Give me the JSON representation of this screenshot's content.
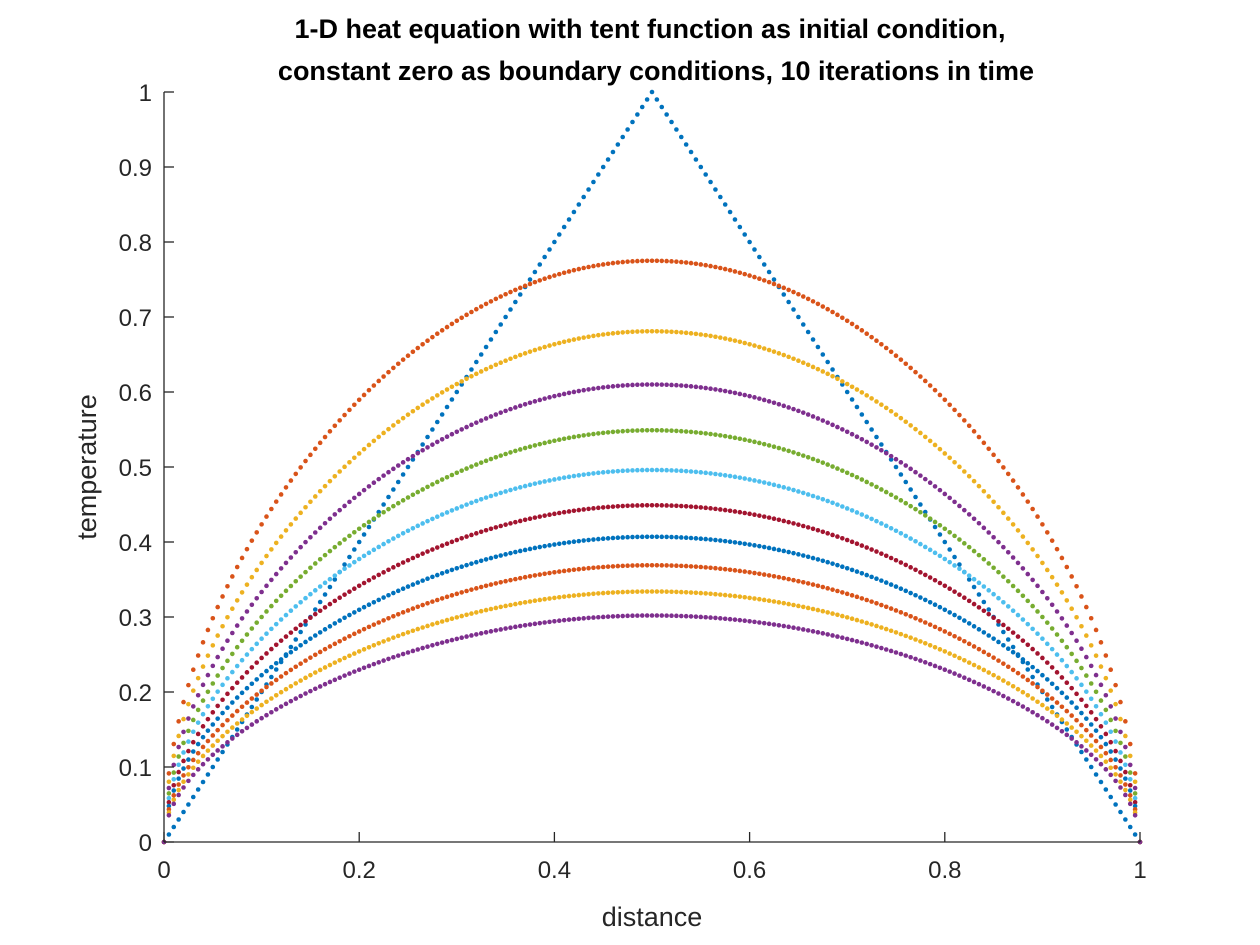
{
  "chart_data": {
    "type": "scatter",
    "title_line1": "1-D heat equation with tent function as initial condition,",
    "title_line2": "constant zero as boundary conditions, 10 iterations in time",
    "xlabel": "distance",
    "ylabel": "temperature",
    "xlim": [
      0,
      1
    ],
    "ylim": [
      0,
      1
    ],
    "x_ticks": [
      "0",
      "0.2",
      "0.4",
      "0.6",
      "0.8",
      "1"
    ],
    "y_ticks": [
      "0",
      "0.1",
      "0.2",
      "0.3",
      "0.4",
      "0.5",
      "0.6",
      "0.7",
      "0.8",
      "0.9",
      "1"
    ],
    "grid": false,
    "legend": "none",
    "points_per_series": 201,
    "x_range": [
      0,
      1
    ],
    "series": [
      {
        "iteration": 0,
        "shape": "tent",
        "peak": 1.0,
        "color": "#0072BD"
      },
      {
        "iteration": 1,
        "shape": "smoothed",
        "peak": 0.775,
        "color": "#D95319"
      },
      {
        "iteration": 2,
        "shape": "smoothed",
        "peak": 0.681,
        "color": "#EDB120"
      },
      {
        "iteration": 3,
        "shape": "smoothed",
        "peak": 0.61,
        "color": "#7E2F8E"
      },
      {
        "iteration": 4,
        "shape": "smoothed",
        "peak": 0.549,
        "color": "#77AC30"
      },
      {
        "iteration": 5,
        "shape": "smoothed",
        "peak": 0.496,
        "color": "#4DBEEE"
      },
      {
        "iteration": 6,
        "shape": "smoothed",
        "peak": 0.449,
        "color": "#A2142F"
      },
      {
        "iteration": 7,
        "shape": "smoothed",
        "peak": 0.407,
        "color": "#0072BD"
      },
      {
        "iteration": 8,
        "shape": "smoothed",
        "peak": 0.369,
        "color": "#D95319"
      },
      {
        "iteration": 9,
        "shape": "smoothed",
        "peak": 0.334,
        "color": "#EDB120"
      },
      {
        "iteration": 10,
        "shape": "smoothed",
        "peak": 0.302,
        "color": "#7E2F8E"
      }
    ]
  }
}
